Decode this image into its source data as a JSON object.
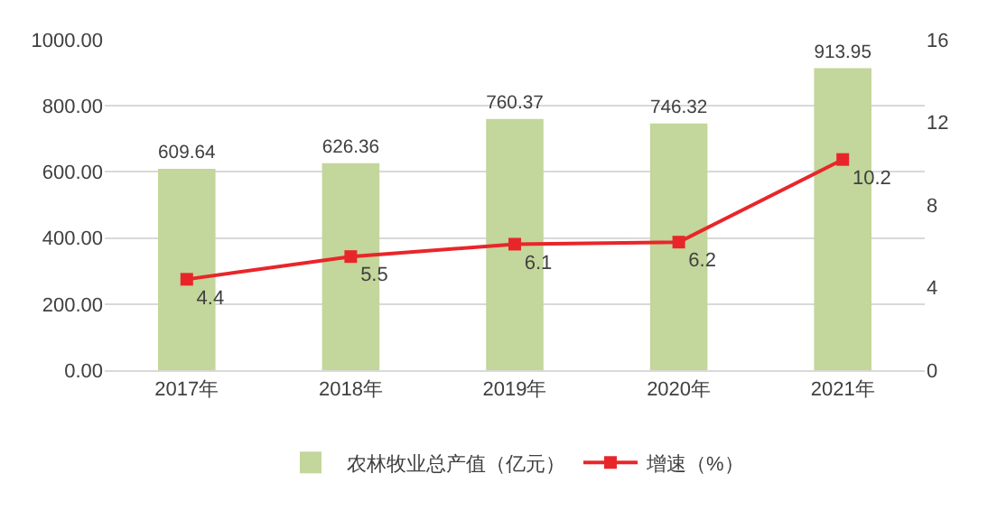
{
  "chart_data": {
    "type": "bar",
    "categories": [
      "2017年",
      "2018年",
      "2019年",
      "2020年",
      "2021年"
    ],
    "series": [
      {
        "name": "农林牧业总产值（亿元）",
        "color": "#c3d69b",
        "values": [
          609.64,
          626.36,
          760.37,
          746.32,
          913.95
        ]
      },
      {
        "name": "增速（%）",
        "type": "line",
        "axis": "y2",
        "color": "#e8262a",
        "marker": "square",
        "values": [
          4.4,
          5.5,
          6.1,
          6.2,
          10.2
        ]
      }
    ],
    "ylim": [
      0,
      1000
    ],
    "yticks": [
      {
        "value": 0,
        "label": "0.00"
      },
      {
        "value": 200,
        "label": "200.00"
      },
      {
        "value": 400,
        "label": "400.00"
      },
      {
        "value": 600,
        "label": "600.00"
      },
      {
        "value": 800,
        "label": "800.00"
      },
      {
        "value": 1000,
        "label": "1000.00"
      }
    ],
    "y2lim": [
      0,
      16
    ],
    "y2ticks": [
      0,
      4,
      8,
      12,
      16
    ],
    "grid": "y",
    "legend": "bottom",
    "data_labels": true
  }
}
